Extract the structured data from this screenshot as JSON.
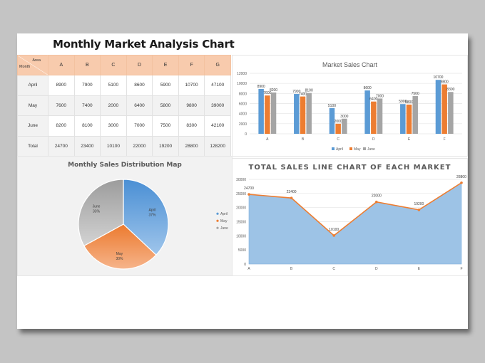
{
  "document": {
    "title": "Monthly Market Analysis Chart"
  },
  "table": {
    "corner": {
      "top_label": "Area",
      "bottom_label": "Month"
    },
    "columns": [
      "A",
      "B",
      "C",
      "D",
      "E",
      "F",
      "G"
    ],
    "rows": [
      {
        "label": "April",
        "values": [
          "8900",
          "7900",
          "5100",
          "8600",
          "5900",
          "10700",
          "47100"
        ]
      },
      {
        "label": "May",
        "values": [
          "7600",
          "7400",
          "2000",
          "6400",
          "5800",
          "9800",
          "39000"
        ]
      },
      {
        "label": "June",
        "values": [
          "8200",
          "8100",
          "3000",
          "7000",
          "7500",
          "8300",
          "42100"
        ]
      },
      {
        "label": "Total",
        "values": [
          "24700",
          "23400",
          "10100",
          "22000",
          "19200",
          "28800",
          "128200"
        ]
      }
    ]
  },
  "colors": {
    "april": "#5b9bd5",
    "may": "#ed7d31",
    "june": "#a5a5a5",
    "header": "#f8cbad",
    "area_fill": "#9dc3e6",
    "page_bg": "#c4c4c4"
  },
  "chart_data": [
    {
      "type": "bar",
      "title": "Market Sales Chart",
      "categories": [
        "A",
        "B",
        "C",
        "D",
        "E",
        "F"
      ],
      "series": [
        {
          "name": "April",
          "values": [
            8900,
            7900,
            5100,
            8600,
            5900,
            10700
          ]
        },
        {
          "name": "May",
          "values": [
            7600,
            7400,
            2000,
            6400,
            5800,
            9800
          ]
        },
        {
          "name": "June",
          "values": [
            8200,
            8100,
            3000,
            7000,
            7500,
            8300
          ]
        }
      ],
      "yticks": [
        "0",
        "2000",
        "4000",
        "6000",
        "8000",
        "10000",
        "12000"
      ],
      "ylim": [
        0,
        12000
      ],
      "grid": true,
      "legend_position": "bottom",
      "xlabel": "",
      "ylabel": ""
    },
    {
      "type": "pie",
      "title": "Monthly Sales Distribution Map",
      "labels": [
        "April",
        "May",
        "June"
      ],
      "values": [
        37,
        30,
        33
      ],
      "value_labels": [
        "37%",
        "30%",
        "33%"
      ],
      "legend_position": "right"
    },
    {
      "type": "area",
      "title": "TOTAL SALES LINE CHART OF EACH MARKET",
      "categories": [
        "A",
        "B",
        "C",
        "D",
        "E",
        "F"
      ],
      "values": [
        24700,
        23400,
        10100,
        22000,
        19200,
        28800
      ],
      "yticks": [
        "0",
        "5000",
        "10000",
        "15000",
        "20000",
        "25000",
        "30000"
      ],
      "ylim": [
        0,
        30000
      ],
      "grid": true,
      "xlabel": "",
      "ylabel": ""
    }
  ]
}
